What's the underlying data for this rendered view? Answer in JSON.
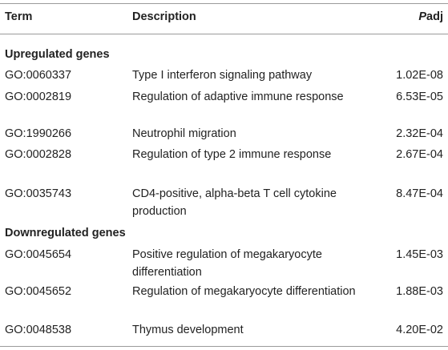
{
  "header": {
    "term": "Term",
    "description": "Description",
    "padj_italic": "P",
    "padj_rest": "adj"
  },
  "sections": [
    {
      "title": "Upregulated genes",
      "rows": [
        {
          "term": "GO:0060337",
          "description": "Type I interferon signaling pathway",
          "padj": "1.02E-08"
        },
        {
          "term": "GO:0002819",
          "description": "Regulation of adaptive immune response",
          "padj": "6.53E-05"
        },
        {
          "term": "GO:1990266",
          "description": "Neutrophil migration",
          "padj": "2.32E-04"
        },
        {
          "term": "GO:0002828",
          "description": "Regulation of type 2 immune response",
          "padj": "2.67E-04"
        },
        {
          "term": "GO:0035743",
          "description": "CD4-positive, alpha-beta T cell cytokine production",
          "padj": "8.47E-04"
        }
      ]
    },
    {
      "title": "Downregulated genes",
      "rows": [
        {
          "term": "GO:0045654",
          "description": "Positive regulation of megakaryocyte differentiation",
          "padj": "1.45E-03"
        },
        {
          "term": "GO:0045652",
          "description": "Regulation of megakaryocyte differentiation",
          "padj": "1.88E-03"
        },
        {
          "term": "GO:0048538",
          "description": "Thymus development",
          "padj": "4.20E-02"
        }
      ]
    }
  ]
}
